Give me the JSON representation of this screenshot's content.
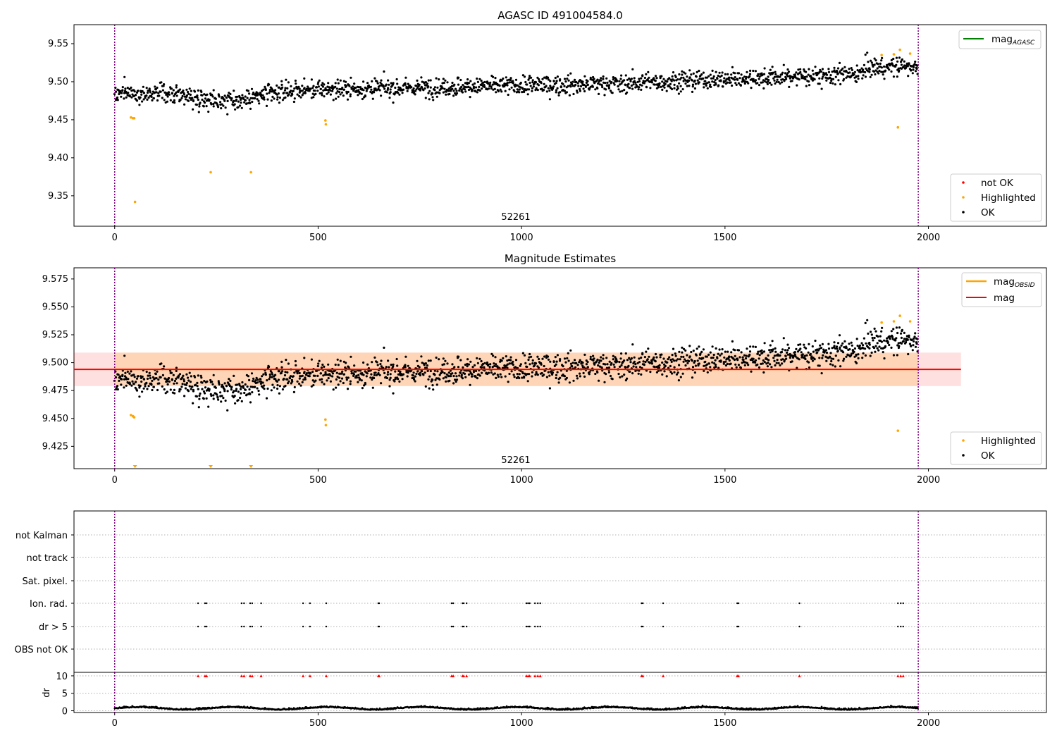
{
  "chart_data": [
    {
      "type": "scatter",
      "title": "AGASC ID 491004584.0",
      "annotation": "52261",
      "xlim": [
        -100,
        2290
      ],
      "ylim": [
        9.31,
        9.575
      ],
      "xticks": [
        0,
        500,
        1000,
        1500,
        2000
      ],
      "yticks": [
        9.35,
        9.4,
        9.45,
        9.5,
        9.55
      ],
      "ytick_labels": [
        "9.35",
        "9.40",
        "9.45",
        "9.50",
        "9.55"
      ],
      "vlines": [
        0,
        1975
      ],
      "line_legend": {
        "label": "mag",
        "subscript": "AGASC",
        "color": "#008000"
      },
      "series": [
        {
          "name": "not OK",
          "color": "#ff0000",
          "points": []
        },
        {
          "name": "Highlighted",
          "color": "#ffa500",
          "points": [
            [
              40,
              9.453
            ],
            [
              45,
              9.452
            ],
            [
              48,
              9.452
            ],
            [
              50,
              9.342
            ],
            [
              236,
              9.381
            ],
            [
              335,
              9.381
            ],
            [
              518,
              9.449
            ],
            [
              519,
              9.444
            ],
            [
              1885,
              9.535
            ],
            [
              1915,
              9.536
            ],
            [
              1925,
              9.44
            ],
            [
              1930,
              9.542
            ],
            [
              1955,
              9.537
            ]
          ]
        },
        {
          "name": "OK",
          "color": "#000000",
          "trend": {
            "start": 9.485,
            "dip_center": 280,
            "dip_depth": 0.012,
            "mid": 9.497,
            "end": 9.51,
            "late_x": 1840,
            "late_level": 9.518,
            "spread": 0.011,
            "n": 1700,
            "x_from": 0,
            "x_to": 1975
          }
        }
      ],
      "legend": [
        "not OK",
        "Highlighted",
        "OK"
      ]
    },
    {
      "type": "scatter",
      "title": "Magnitude Estimates",
      "annotation": "52261",
      "xlim": [
        -100,
        2290
      ],
      "ylim": [
        9.405,
        9.585
      ],
      "xticks": [
        0,
        500,
        1000,
        1500,
        2000
      ],
      "yticks": [
        9.425,
        9.45,
        9.475,
        9.5,
        9.525,
        9.55,
        9.575
      ],
      "ytick_labels": [
        "9.425",
        "9.450",
        "9.475",
        "9.500",
        "9.525",
        "9.550",
        "9.575"
      ],
      "vlines": [
        0,
        1975
      ],
      "mag_line": {
        "label": "mag",
        "value": 9.494,
        "color": "#ff0000",
        "x_from": -100,
        "x_to": 2080
      },
      "mag_band": {
        "low": 9.479,
        "high": 9.509,
        "color": "#ff0000"
      },
      "obsid_line": {
        "label": "mag",
        "subscript": "OBSID",
        "value": 9.494,
        "low": 9.479,
        "high": 9.509,
        "x_from": 0,
        "x_to": 1975,
        "color": "#ffa500"
      },
      "lower_limit_markers": [
        50,
        236,
        335
      ],
      "series": [
        {
          "name": "Highlighted",
          "color": "#ffa500",
          "points": [
            [
              40,
              9.453
            ],
            [
              45,
              9.452
            ],
            [
              48,
              9.451
            ],
            [
              518,
              9.449
            ],
            [
              519,
              9.444
            ],
            [
              1885,
              9.536
            ],
            [
              1915,
              9.537
            ],
            [
              1925,
              9.439
            ],
            [
              1930,
              9.542
            ],
            [
              1955,
              9.537
            ]
          ]
        },
        {
          "name": "OK",
          "color": "#000000"
        }
      ],
      "legend_lines": [
        "mag OBSID",
        "mag"
      ],
      "legend": [
        "Highlighted",
        "OK"
      ]
    },
    {
      "type": "scatter",
      "title": "",
      "xlim": [
        -100,
        2290
      ],
      "xticks": [
        0,
        500,
        1000,
        1500,
        2000
      ],
      "vlines": [
        0,
        1975
      ],
      "flag_rows": [
        "not Kalman",
        "not track",
        "Sat. pixel.",
        "Ion. rad.",
        "dr > 5",
        "OBS not OK"
      ],
      "flag_events": [
        205,
        222,
        226,
        312,
        318,
        333,
        338,
        360,
        463,
        480,
        520,
        648,
        650,
        828,
        832,
        855,
        858,
        865,
        1012,
        1016,
        1020,
        1033,
        1040,
        1046,
        1295,
        1298,
        1348,
        1530,
        1533,
        1683,
        1925,
        1932,
        1938
      ],
      "dr": {
        "ylabel": "dr",
        "ylim": [
          -0.5,
          11
        ],
        "yticks": [
          0,
          5,
          10
        ],
        "ytick_labels": [
          "0",
          "5",
          "10"
        ],
        "baseline": 0.6,
        "spread": 0.5,
        "clipped_at": 10,
        "clipped_color": "#ff0000"
      }
    }
  ],
  "legend_labels": {
    "not_ok": "not OK",
    "highlighted": "Highlighted",
    "ok": "OK",
    "mag": "mag",
    "agasc_sub": "AGASC",
    "obsid_sub": "OBSID"
  },
  "xtick_labels": [
    "0",
    "500",
    "1000",
    "1500",
    "2000"
  ]
}
